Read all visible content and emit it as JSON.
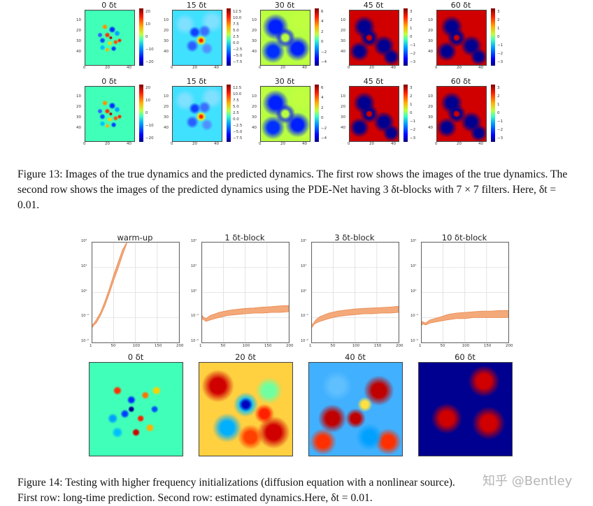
{
  "figure13": {
    "row1_titles": [
      "0 δt",
      "15 δt",
      "30 δt",
      "45 δt",
      "60 δt"
    ],
    "row2_titles": [
      "0 δt",
      "15 δt",
      "30 δt",
      "45 δt",
      "60 δt"
    ],
    "axis_ticks": [
      "0",
      "10",
      "20",
      "30",
      "40"
    ],
    "colorbars": [
      [
        "20",
        "10",
        "0",
        "−10",
        "−20"
      ],
      [
        "12.5",
        "10.0",
        "7.5",
        "5.0",
        "2.5",
        "0.0",
        "−2.5",
        "−5.0",
        "−7.5"
      ],
      [
        "6",
        "4",
        "2",
        "0",
        "−2",
        "−4"
      ],
      [
        "3",
        "2",
        "1",
        "0",
        "−1",
        "−2",
        "−3"
      ],
      [
        "3",
        "2",
        "1",
        "0",
        "−1",
        "−2",
        "−3"
      ]
    ],
    "caption": "Figure 13: Images of the true dynamics and the predicted dynamics. The first row shows the images of the true dynamics. The second row shows the images of the predicted dynamics using the PDE-Net having 3 δt-blocks with 7 × 7 filters. Here, δt = 0.01."
  },
  "figure14": {
    "chart_data": [
      {
        "type": "area",
        "title": "warm-up",
        "x_ticks": [
          "1",
          "50",
          "100",
          "150",
          "200"
        ],
        "y_ticks": [
          "10²",
          "10¹",
          "10⁰",
          "10⁻¹",
          "10⁻²"
        ],
        "y_scale": "log",
        "ylim": [
          0.01,
          100
        ],
        "xlim": [
          1,
          200
        ],
        "series": [
          {
            "x": [
              1,
              5,
              10,
              20,
              30,
              40,
              50,
              60,
              70,
              80
            ],
            "lower": [
              0.04,
              0.05,
              0.06,
              0.12,
              0.3,
              0.9,
              3,
              9,
              30,
              90
            ],
            "upper": [
              0.05,
              0.06,
              0.08,
              0.16,
              0.45,
              1.4,
              5,
              16,
              50,
              100
            ]
          }
        ]
      },
      {
        "type": "area",
        "title": "1 δt-block",
        "x_ticks": [
          "1",
          "50",
          "100",
          "150",
          "200"
        ],
        "y_ticks": [
          "10²",
          "10¹",
          "10⁰",
          "10⁻¹",
          "10⁻²"
        ],
        "y_scale": "log",
        "ylim": [
          0.01,
          100
        ],
        "xlim": [
          1,
          200
        ],
        "series": [
          {
            "x": [
              1,
              5,
              10,
              20,
              40,
              60,
              80,
              100,
              120,
              140,
              160,
              180,
              200
            ],
            "lower": [
              0.09,
              0.08,
              0.07,
              0.08,
              0.1,
              0.12,
              0.13,
              0.14,
              0.15,
              0.15,
              0.16,
              0.16,
              0.17
            ],
            "upper": [
              0.12,
              0.1,
              0.09,
              0.12,
              0.16,
              0.19,
              0.21,
              0.23,
              0.24,
              0.26,
              0.27,
              0.29,
              0.3
            ]
          }
        ]
      },
      {
        "type": "area",
        "title": "3 δt-block",
        "x_ticks": [
          "1",
          "50",
          "100",
          "150",
          "200"
        ],
        "y_ticks": [
          "10²",
          "10¹",
          "10⁰",
          "10⁻¹",
          "10⁻²"
        ],
        "y_scale": "log",
        "ylim": [
          0.01,
          100
        ],
        "xlim": [
          1,
          200
        ],
        "series": [
          {
            "x": [
              1,
              5,
              10,
              20,
              40,
              60,
              80,
              100,
              120,
              140,
              160,
              180,
              200
            ],
            "lower": [
              0.04,
              0.05,
              0.06,
              0.07,
              0.09,
              0.11,
              0.12,
              0.13,
              0.14,
              0.14,
              0.15,
              0.15,
              0.16
            ],
            "upper": [
              0.05,
              0.06,
              0.08,
              0.11,
              0.15,
              0.18,
              0.2,
              0.22,
              0.23,
              0.24,
              0.25,
              0.26,
              0.28
            ]
          }
        ]
      },
      {
        "type": "area",
        "title": "10 δt-block",
        "x_ticks": [
          "1",
          "50",
          "100",
          "150",
          "200"
        ],
        "y_ticks": [
          "10²",
          "10¹",
          "10⁰",
          "10⁻¹",
          "10⁻²"
        ],
        "y_scale": "log",
        "ylim": [
          0.01,
          100
        ],
        "xlim": [
          1,
          200
        ],
        "series": [
          {
            "x": [
              1,
              5,
              10,
              20,
              40,
              60,
              80,
              100,
              120,
              140,
              160,
              180,
              200
            ],
            "lower": [
              0.05,
              0.055,
              0.05,
              0.06,
              0.07,
              0.08,
              0.09,
              0.09,
              0.1,
              0.1,
              0.1,
              0.1,
              0.1
            ],
            "upper": [
              0.07,
              0.065,
              0.06,
              0.08,
              0.1,
              0.13,
              0.15,
              0.16,
              0.17,
              0.18,
              0.18,
              0.19,
              0.19
            ]
          }
        ]
      }
    ],
    "row2_titles": [
      "0 δt",
      "20 δt",
      "40 δt",
      "60 δt"
    ],
    "caption_line1": "Figure 14: Testing with higher frequency initializations (diffusion equation with a nonlinear source).",
    "caption_line2": "First row: long-time prediction. Second row: estimated dynamics.Here, δt = 0.01."
  },
  "watermark": "知乎 @Bentley",
  "colors": {
    "band": "#f4a97a",
    "band_edge": "#e8884f"
  }
}
